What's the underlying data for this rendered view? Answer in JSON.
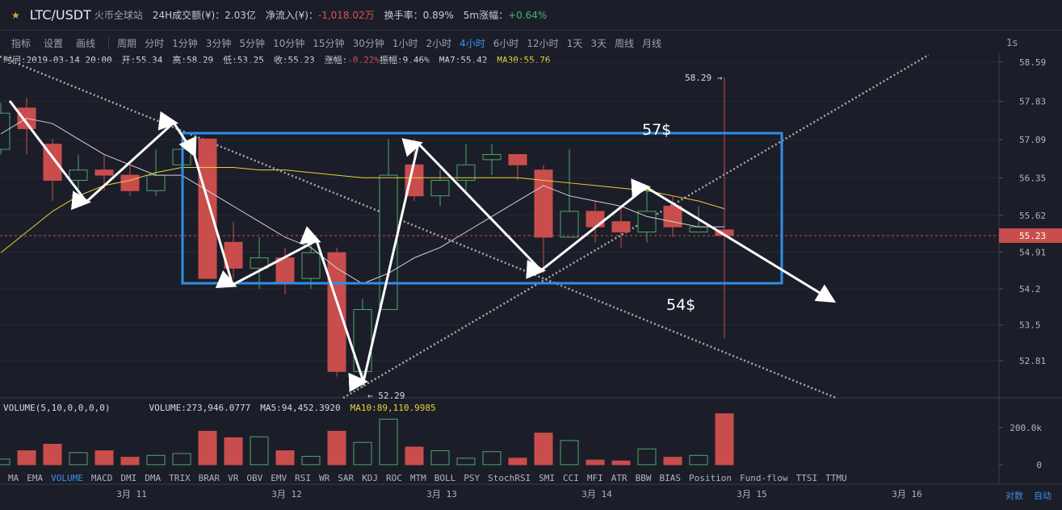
{
  "header": {
    "pair": "LTC/USDT",
    "exchange": "火币全球站",
    "stats": [
      "24H成交额(¥)：2.03亿",
      "换手率：0.89%"
    ],
    "inflow_label": "净流入(¥)：",
    "inflow_value": "-1,018.02万",
    "change_label": "5m涨幅：",
    "change_value": "+0.64%"
  },
  "toolbar": {
    "tools": [
      "指标",
      "设置",
      "画线"
    ],
    "period_label": "周期",
    "periods": [
      "分时",
      "1分钟",
      "3分钟",
      "5分钟",
      "10分钟",
      "15分钟",
      "30分钟",
      "1小时",
      "2小时",
      "4小时",
      "6小时",
      "12小时",
      "1天",
      "3天",
      "周线",
      "月线"
    ],
    "active_period": "4小时",
    "refresh": "1s"
  },
  "info": {
    "items": [
      "时间:2019-03-14 20:00",
      "开:55.34",
      "高:58.29",
      "低:53.25",
      "收:55.23"
    ],
    "change_label": "涨幅:",
    "change_value": "-0.22%",
    "amplitude": "振幅:9.46%",
    "ma7": "MA7:55.42",
    "ma30": "MA30:55.76"
  },
  "chart": {
    "type": "candlestick",
    "ylim": [
      52.09,
      58.76
    ],
    "yticks": [
      58.59,
      57.83,
      57.09,
      56.35,
      55.62,
      54.91,
      54.2,
      53.5,
      52.81
    ],
    "open": [
      56.9,
      57.7,
      57.0,
      56.3,
      56.5,
      56.4,
      56.1,
      56.6,
      57.1,
      55.1,
      54.6,
      54.8,
      54.4,
      54.9,
      52.6,
      53.8,
      56.6,
      56.0,
      56.3,
      56.7,
      56.8,
      56.5,
      55.2,
      55.7,
      55.5,
      55.3,
      55.8,
      55.3,
      55.34
    ],
    "high": [
      57.8,
      57.9,
      57.1,
      56.8,
      56.8,
      56.6,
      56.9,
      57.2,
      57.1,
      55.5,
      55.2,
      55.0,
      55.1,
      55.0,
      54.0,
      57.1,
      57.1,
      56.5,
      57.0,
      57.0,
      56.8,
      56.6,
      56.9,
      55.9,
      55.8,
      56.2,
      56.0,
      55.8,
      58.29
    ],
    "low": [
      56.8,
      56.8,
      55.9,
      55.9,
      56.1,
      56.0,
      56.0,
      56.4,
      54.4,
      54.4,
      54.2,
      54.1,
      54.2,
      52.5,
      52.29,
      53.8,
      55.9,
      55.8,
      56.1,
      56.4,
      56.3,
      54.5,
      55.2,
      55.1,
      55.0,
      55.1,
      55.2,
      55.3,
      53.25
    ],
    "close": [
      57.6,
      57.3,
      56.3,
      56.5,
      56.4,
      56.1,
      56.4,
      56.9,
      54.4,
      54.6,
      54.8,
      54.3,
      54.9,
      52.6,
      53.8,
      56.4,
      56.0,
      56.3,
      56.6,
      56.8,
      56.6,
      55.2,
      55.7,
      55.4,
      55.3,
      55.7,
      55.4,
      55.4,
      55.23
    ],
    "ma7": [
      57.2,
      57.5,
      57.4,
      57.1,
      56.8,
      56.6,
      56.4,
      56.4,
      56.1,
      55.8,
      55.5,
      55.2,
      55.0,
      54.6,
      54.3,
      54.5,
      54.8,
      55.0,
      55.3,
      55.6,
      55.9,
      56.2,
      56.0,
      55.9,
      55.8,
      55.6,
      55.5,
      55.4,
      55.4
    ],
    "ma30": [
      54.9,
      55.3,
      55.7,
      56.0,
      56.2,
      56.3,
      56.45,
      56.55,
      56.55,
      56.55,
      56.5,
      56.5,
      56.45,
      56.4,
      56.35,
      56.35,
      56.35,
      56.35,
      56.35,
      56.35,
      56.35,
      56.3,
      56.25,
      56.2,
      56.15,
      56.1,
      56.0,
      55.9,
      55.75
    ],
    "high_marker": "58.29 →",
    "low_marker": "← 52.29",
    "annotations": [
      "57$",
      "54$"
    ],
    "volume_title": "VOLUME(5,10,0,0,0,0)",
    "volume_info": [
      "VOLUME:273,946.0777",
      "MA5:94,452.3920"
    ],
    "volume_ma10": "MA10:89,110.9985",
    "volume": [
      30000,
      75000,
      110000,
      65000,
      75000,
      40000,
      50000,
      60000,
      180000,
      145000,
      150000,
      75000,
      45000,
      180000,
      120000,
      245000,
      95000,
      75000,
      35000,
      70000,
      35000,
      170000,
      130000,
      25000,
      20000,
      85000,
      40000,
      50000,
      273946
    ],
    "vlim": [
      -31000,
      351000
    ],
    "vticks": [
      0,
      {
        "value": 200000,
        "label": "200.0k"
      }
    ],
    "xticks": [
      "3月 11",
      "3月 12",
      "3月 13",
      "3月 14",
      "3月 15",
      "3月 16"
    ]
  },
  "indicators": {
    "tabs": [
      "MA",
      "EMA",
      "VOLUME",
      "MACD",
      "DMI",
      "DMA",
      "TRIX",
      "BRAR",
      "VR",
      "OBV",
      "EMV",
      "RSI",
      "WR",
      "SAR",
      "KDJ",
      "ROC",
      "MTM",
      "BOLL",
      "PSY",
      "StochRSI",
      "SMI",
      "CCI",
      "MFI",
      "ATR",
      "BBW",
      "BIAS",
      "Position",
      "Fund-flow",
      "TTSI",
      "TTMU"
    ],
    "active": "VOLUME"
  },
  "footer": {
    "log": "对数",
    "auto": "自动"
  }
}
